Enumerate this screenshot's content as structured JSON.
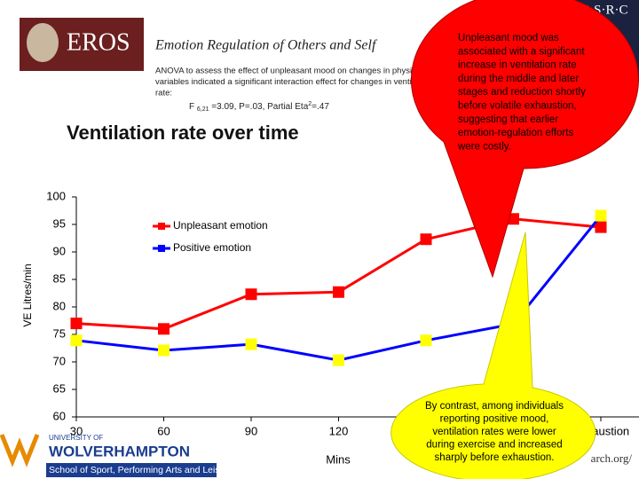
{
  "header": {
    "logo": "EROS",
    "title": "Emotion Regulation of Others and Self",
    "anova_lines": [
      "ANOVA to assess the effect of unpleasant mood on changes in physiological",
      "variables indicated a significant interaction effect for changes in ventilation",
      "rate:"
    ],
    "stat": {
      "prefix": "F",
      "sub": "6,21",
      "mid": "=3.09, P=.03, Partial Eta",
      "sup": "2",
      "end": "=.47"
    }
  },
  "esrc": "E·S·R·C",
  "university": {
    "top": "UNIVERSITY OF",
    "name": "WOLVERHAMPTON",
    "school": "School of Sport, Performing Arts and Leisure"
  },
  "url_fragment": "arch.org/",
  "chart_data": {
    "type": "line",
    "title": "Ventilation rate over time",
    "y_label": "VE Litres/min",
    "x_label": "Mins",
    "categories": [
      "30",
      "60",
      "90",
      "120",
      null,
      null,
      "Exhaustion"
    ],
    "series": [
      {
        "name": "Unpleasant emotion",
        "color": "#ff0000",
        "marker_color": "#ff0000",
        "values": [
          77,
          76,
          82.3,
          82.7,
          92.3,
          96,
          94.5
        ]
      },
      {
        "name": "Positive emotion",
        "color": "#0000ff",
        "marker_color": "#ffff00",
        "values": [
          73.9,
          72.1,
          73.2,
          70.3,
          73.9,
          76.9,
          96.6
        ]
      }
    ],
    "ylim": [
      60,
      100
    ],
    "yticks": [
      60,
      65,
      70,
      75,
      80,
      85,
      90,
      95,
      100
    ]
  },
  "callouts": {
    "unpleasant": [
      "Unpleasant mood was",
      "associated with a significant",
      "increase in ventilation rate",
      "during the middle and later",
      "stages and reduction shortly",
      "before volatile exhaustion,",
      "suggesting that earlier",
      "emotion-regulation efforts",
      "were costly."
    ],
    "positive": [
      "By contrast, among individuals",
      "reporting positive mood,",
      "ventilation rates were lower",
      "during exercise and increased",
      "sharply before exhaustion."
    ]
  }
}
